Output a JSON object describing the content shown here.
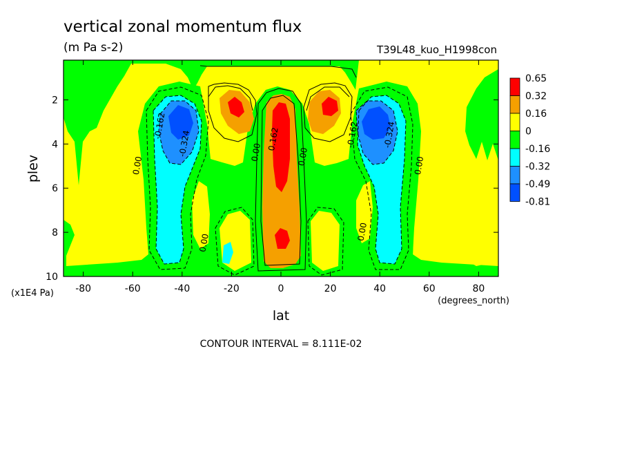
{
  "chart_data": {
    "type": "heatmap",
    "title": "vertical zonal momentum flux",
    "units": "(m Pa s-2)",
    "run_label": "T39L48_kuo_H1998con",
    "xlabel": "lat",
    "x_units": "(degrees_north)",
    "ylabel": "plev",
    "y_units": "(x1E4 Pa)",
    "footer": "CONTOUR INTERVAL = 8.111E-02",
    "xlim": [
      -88,
      88
    ],
    "ylim": [
      0.2,
      10
    ],
    "y_inverted": true,
    "x_ticks": [
      "-80",
      "-60",
      "-40",
      "-20",
      "0",
      "20",
      "40",
      "60",
      "80"
    ],
    "x_tick_values": [
      -80,
      -60,
      -40,
      -20,
      0,
      20,
      40,
      60,
      80
    ],
    "y_ticks": [
      "2",
      "4",
      "6",
      "8",
      "10"
    ],
    "y_tick_values": [
      2,
      4,
      6,
      8,
      10
    ],
    "legend": {
      "position": "right",
      "levels": [
        "0.65",
        "0.32",
        "0.16",
        "0",
        "-0.16",
        "-0.32",
        "-0.49",
        "-0.81"
      ],
      "colors": [
        "#ff0000",
        "#f5a000",
        "#ffff00",
        "#00ff00",
        "#00ffff",
        "#1e90ff",
        "#0050ff"
      ]
    },
    "contour_labels": [
      {
        "text": "-0.162",
        "lat": -48,
        "plev": 3.2
      },
      {
        "text": "-0.324",
        "lat": -38,
        "plev": 4.0
      },
      {
        "text": "0.00",
        "lat": -57,
        "plev": 5.0
      },
      {
        "text": "0.00",
        "lat": -30,
        "plev": 8.5
      },
      {
        "text": "0.00",
        "lat": -9,
        "plev": 4.4
      },
      {
        "text": "0.162",
        "lat": -2,
        "plev": 3.8
      },
      {
        "text": "0.00",
        "lat": 10,
        "plev": 4.6
      },
      {
        "text": "-0.162",
        "lat": 30,
        "plev": 3.6
      },
      {
        "text": "-0.324",
        "lat": 45,
        "plev": 3.6
      },
      {
        "text": "0.00",
        "lat": 57,
        "plev": 5.0
      },
      {
        "text": "0.00",
        "lat": 34,
        "plev": 8.0
      }
    ],
    "field": [
      {
        "lat": 0,
        "plev": 3.0,
        "value": 0.5,
        "note": "equatorial upper maximum"
      },
      {
        "lat": 0,
        "plev": 8.4,
        "value": 0.4,
        "note": "equatorial lower maximum"
      },
      {
        "lat": -19,
        "plev": 2.3,
        "value": 0.4
      },
      {
        "lat": 21,
        "plev": 2.3,
        "value": 0.4
      },
      {
        "lat": -42,
        "plev": 2.9,
        "value": -0.55
      },
      {
        "lat": 42,
        "plev": 2.9,
        "value": -0.55
      },
      {
        "lat": -45,
        "plev": 8.0,
        "value": -0.25
      },
      {
        "lat": 45,
        "plev": 8.0,
        "value": -0.25
      },
      {
        "lat": -20,
        "plev": 8.8,
        "value": -0.18
      },
      {
        "lat": -70,
        "plev": 5.0,
        "value": 0.05
      },
      {
        "lat": 70,
        "plev": 5.0,
        "value": 0.05
      }
    ]
  }
}
